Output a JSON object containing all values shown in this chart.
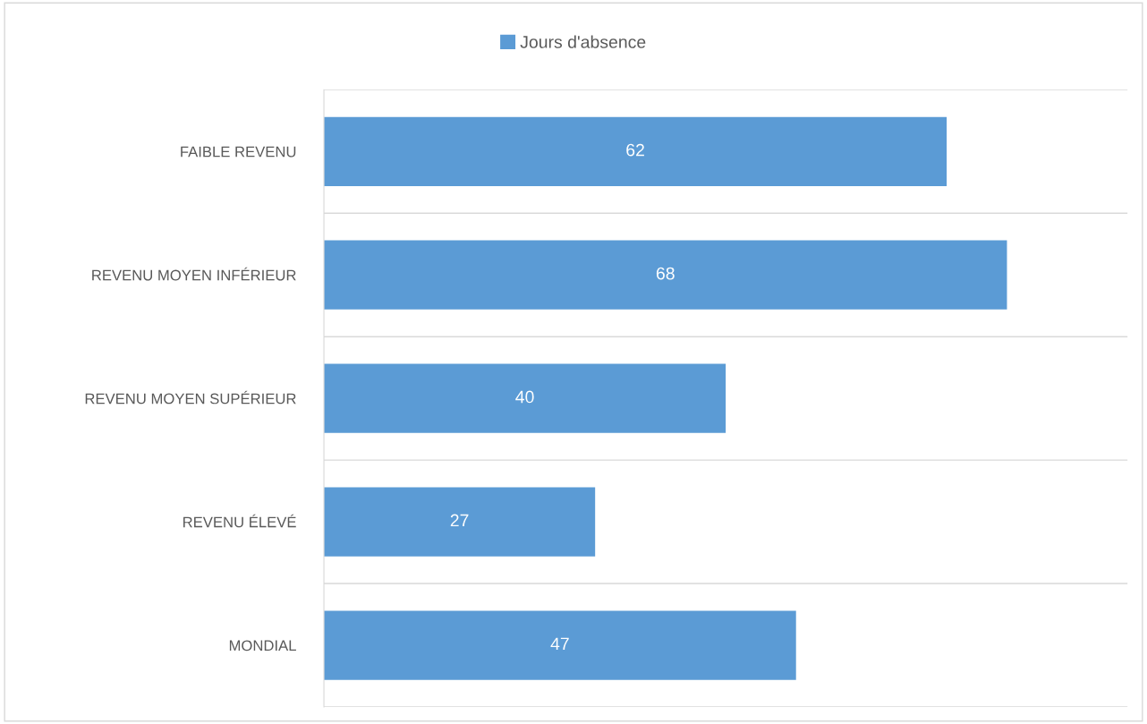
{
  "chart_data": {
    "type": "bar",
    "orientation": "horizontal",
    "categories": [
      "FAIBLE REVENU",
      "REVENU MOYEN INFÉRIEUR",
      "REVENU MOYEN SUPÉRIEUR",
      "REVENU ÉLEVÉ",
      "MONDIAL"
    ],
    "series": [
      {
        "name": "Jours d'absence",
        "color": "#5b9bd5",
        "values": [
          62,
          68,
          40,
          27,
          47
        ]
      }
    ],
    "xlim": [
      0,
      80
    ],
    "data_labels": true,
    "grid": "y",
    "legend": "top",
    "tick_labels": "y"
  }
}
